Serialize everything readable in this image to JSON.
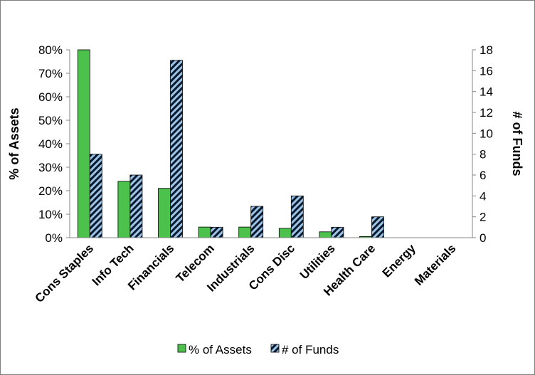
{
  "chart_data": {
    "type": "bar",
    "categories": [
      "Cons Staples",
      "Info Tech",
      "Financials",
      "Telecom",
      "Industrials",
      "Cons Disc",
      "Utilities",
      "Health Care",
      "Energy",
      "Materials"
    ],
    "series": [
      {
        "name": "% of Assets",
        "axis": "left",
        "color": "#4cc24c",
        "values": [
          0.8,
          0.24,
          0.21,
          0.045,
          0.045,
          0.04,
          0.025,
          0.005,
          0.0,
          0.0
        ]
      },
      {
        "name": "# of Funds",
        "axis": "right",
        "color": "#9dc3e6",
        "pattern": "diagonal-hatch",
        "values": [
          8,
          6,
          17,
          1,
          3,
          4,
          1,
          2,
          0,
          0
        ]
      }
    ],
    "ylabel_left": "% of Assets",
    "ylabel_right": "# of Funds",
    "ylim_left": [
      0,
      0.8
    ],
    "yticks_left": [
      "0%",
      "10%",
      "20%",
      "30%",
      "40%",
      "50%",
      "60%",
      "70%",
      "80%"
    ],
    "ylim_right": [
      0,
      18
    ],
    "yticks_right": [
      "0",
      "2",
      "4",
      "6",
      "8",
      "10",
      "12",
      "14",
      "16",
      "18"
    ],
    "grid": false,
    "legend_position": "bottom"
  }
}
